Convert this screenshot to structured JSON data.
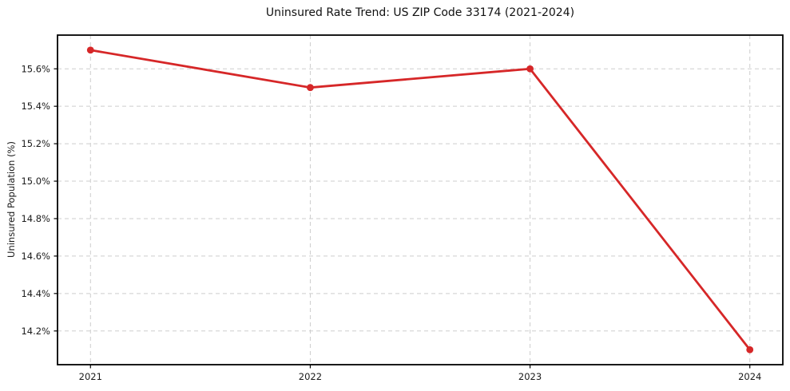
{
  "figure": {
    "background": "#ffffff"
  },
  "chart_data": {
    "type": "line",
    "title": "Uninsured Rate Trend: US ZIP Code 33174 (2021-2024)",
    "xlabel": "",
    "ylabel": "Uninsured Population (%)",
    "x": [
      2021,
      2022,
      2023,
      2024
    ],
    "series": [
      {
        "name": "Uninsured rate (%)",
        "values": [
          15.7,
          15.5,
          15.6,
          14.1
        ]
      }
    ],
    "yticks": [
      14.2,
      14.4,
      14.6,
      14.8,
      15.0,
      15.2,
      15.4,
      15.6
    ],
    "ytick_suffix": "%",
    "xticks": [
      2021,
      2022,
      2023,
      2024
    ],
    "ylim": [
      14.02,
      15.78
    ],
    "xlim": [
      2020.85,
      2024.15
    ],
    "grid": true,
    "grid_style": "dashed",
    "legend": "none",
    "colors": {
      "line": "#d62728",
      "marker": "#d62728",
      "grid": "#cdcdcd",
      "spine": "#000000",
      "tick_text": "#1a1a1a",
      "title_text": "#111111"
    }
  }
}
